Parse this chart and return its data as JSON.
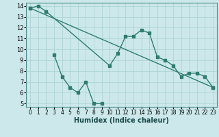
{
  "series1_x": [
    0,
    1,
    2,
    10,
    11,
    12,
    13,
    14,
    15,
    16,
    17,
    18,
    19,
    20,
    21,
    22,
    23
  ],
  "series1_y": [
    13.8,
    14.0,
    13.5,
    8.5,
    9.6,
    11.2,
    11.2,
    11.8,
    11.5,
    9.3,
    9.0,
    8.5,
    7.5,
    7.8,
    7.8,
    7.5,
    6.5
  ],
  "series2_x": [
    3,
    4,
    5,
    6,
    7,
    8,
    9
  ],
  "series2_y": [
    9.5,
    7.5,
    6.5,
    6.0,
    7.0,
    5.0,
    5.0
  ],
  "series3_x": [
    0,
    23
  ],
  "series3_y": [
    13.8,
    6.5
  ],
  "line_color": "#2e7d6e",
  "bg_color": "#cce8ea",
  "grid_color": "#aed4d6",
  "xlabel": "Humidex (Indice chaleur)",
  "xlim": [
    -0.5,
    23.5
  ],
  "ylim": [
    4.7,
    14.3
  ],
  "yticks": [
    5,
    6,
    7,
    8,
    9,
    10,
    11,
    12,
    13,
    14
  ],
  "xticks": [
    0,
    1,
    2,
    3,
    4,
    5,
    6,
    7,
    8,
    9,
    10,
    11,
    12,
    13,
    14,
    15,
    16,
    17,
    18,
    19,
    20,
    21,
    22,
    23
  ],
  "xlabel_fontsize": 7,
  "tick_fontsize": 5.5
}
